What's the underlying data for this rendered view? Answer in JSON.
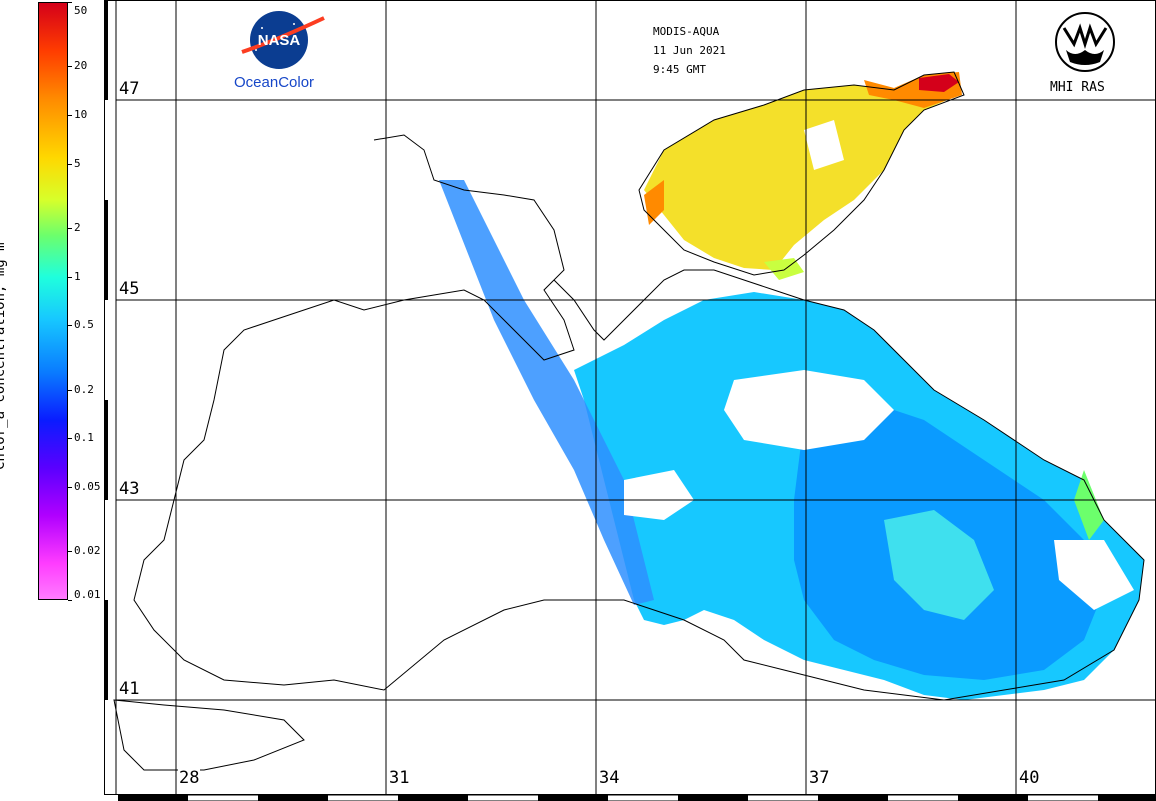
{
  "header": {
    "sensor": "MODIS-AQUA",
    "date": "11 Jun 2021",
    "time": "9:45 GMT"
  },
  "logos": {
    "nasa_text": "NASA",
    "nasa_caption": "OceanColor",
    "mhi_caption": "MHI RAS"
  },
  "colorbar": {
    "title": "Chlor_a concentration, mg·m⁻³",
    "ticks": [
      "50",
      "20",
      "10",
      "5",
      "2",
      "1",
      "0.5",
      "0.2",
      "0.1",
      "0.05",
      "0.02",
      "0.01"
    ]
  },
  "latitudes": [
    "47",
    "45",
    "43",
    "41"
  ],
  "longitudes": [
    "28",
    "31",
    "34",
    "37",
    "40"
  ],
  "colors": {
    "low": "#0a7bff",
    "mid": "#17c8ff",
    "high": "#ffd800",
    "very_high": "#d4001a"
  }
}
